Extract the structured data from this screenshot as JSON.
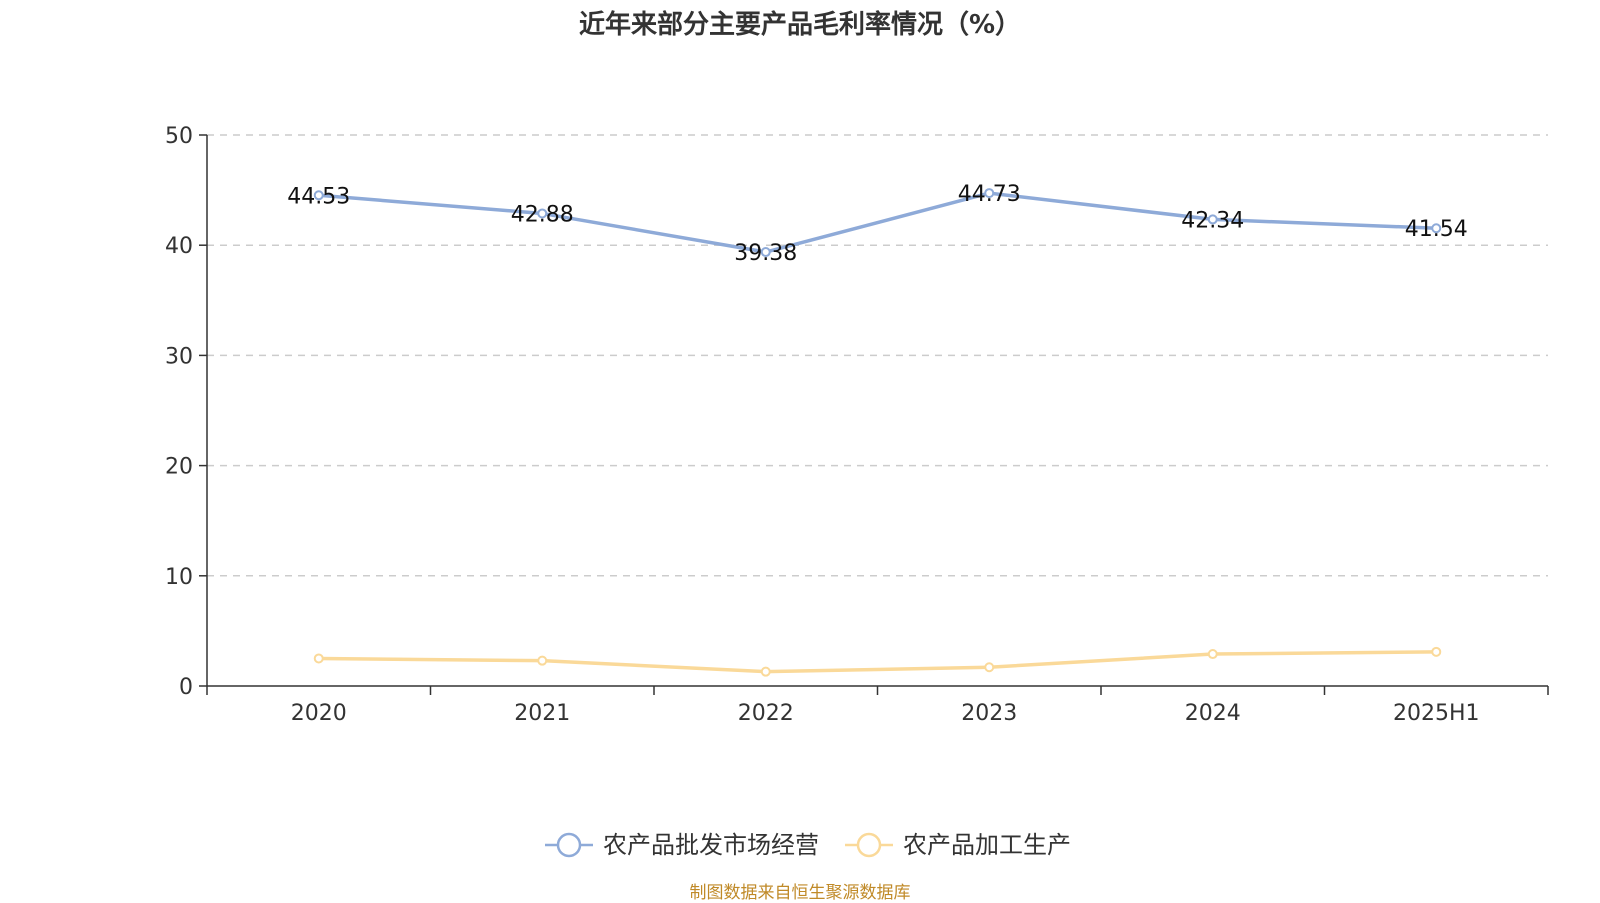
{
  "title": "近年来部分主要产品毛利率情况（%）",
  "source": "制图数据来自恒生聚源数据库",
  "chart_data": {
    "type": "line",
    "title": "近年来部分主要产品毛利率情况（%）",
    "categories": [
      "2020",
      "2021",
      "2022",
      "2023",
      "2024",
      "2025H1"
    ],
    "ylim": [
      0,
      50
    ],
    "yticks": [
      0,
      10,
      20,
      30,
      40,
      50
    ],
    "grid": true,
    "legend_position": "bottom",
    "series": [
      {
        "name": "农产品批发市场经营",
        "color": "#8eaad8",
        "values": [
          44.53,
          42.88,
          39.38,
          44.73,
          42.34,
          41.54
        ],
        "labels": [
          "44.53",
          "42.88",
          "39.38",
          "44.73",
          "42.34",
          "41.54"
        ]
      },
      {
        "name": "农产品加工生产",
        "color": "#fad999",
        "values": [
          2.5,
          2.3,
          1.3,
          1.7,
          2.9,
          3.1
        ]
      }
    ]
  }
}
